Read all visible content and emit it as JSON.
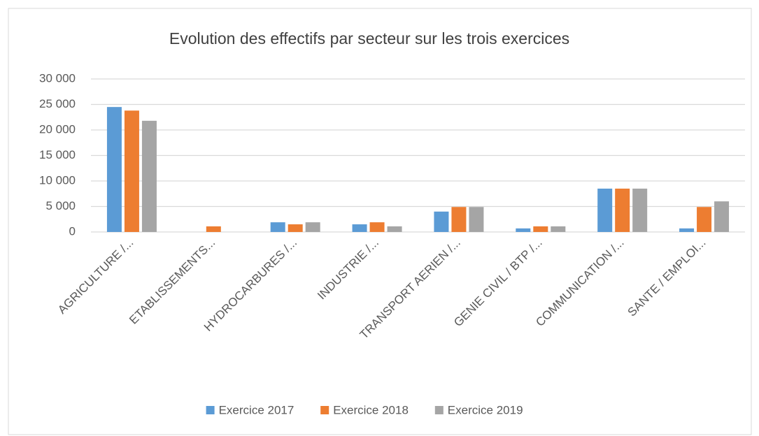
{
  "chart_data": {
    "type": "bar",
    "title": "Evolution des effectifs par secteur sur les trois exercices",
    "categories": [
      "AGRICULTURE /...",
      "ETABLISSEMENTS...",
      "HYDROCARBURES /...",
      "INDUSTRIE /...",
      "TRANSPORT AERIEN /...",
      "GENIE CIVIL / BTP /...",
      "COMMUNICATION /...",
      "SANTE / EMPLOI..."
    ],
    "series": [
      {
        "name": "Exercice 2017",
        "color": "#5b9bd5",
        "values": [
          24500,
          0,
          1900,
          1500,
          4000,
          700,
          8500,
          700
        ]
      },
      {
        "name": "Exercice 2018",
        "color": "#ed7d31",
        "values": [
          23800,
          1100,
          1500,
          1900,
          4900,
          1100,
          8500,
          4900
        ]
      },
      {
        "name": "Exercice 2019",
        "color": "#a5a5a5",
        "values": [
          21800,
          0,
          1900,
          1100,
          4900,
          1100,
          8500,
          6000
        ]
      }
    ],
    "ylim": [
      0,
      30000
    ],
    "yticks": [
      0,
      {
        "value": 5000,
        "label": "5 000"
      },
      {
        "value": 10000,
        "label": "10 000"
      },
      {
        "value": 15000,
        "label": "15 000"
      },
      {
        "value": 20000,
        "label": "20 000"
      },
      {
        "value": 25000,
        "label": "25 000"
      },
      {
        "value": 30000,
        "label": "30 000"
      }
    ],
    "grid": true,
    "legend": "bottom"
  }
}
